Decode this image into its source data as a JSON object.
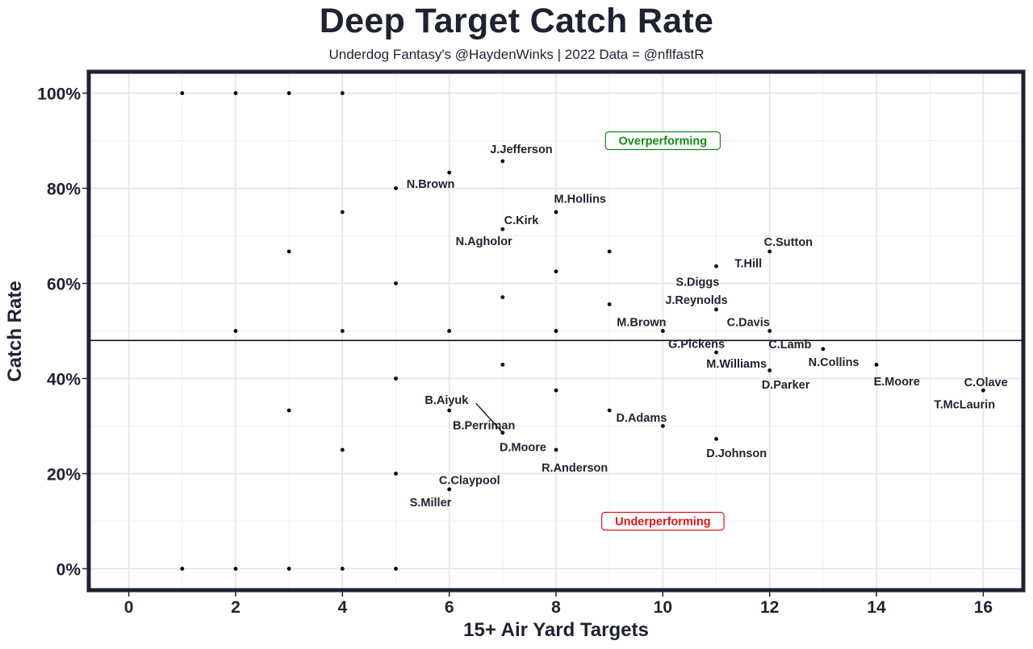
{
  "title": "Deep Target Catch Rate",
  "subtitle": "Underdog Fantasy's @HaydenWinks | 2022 Data = @nflfastR",
  "chart_data": {
    "type": "scatter",
    "xlabel": "15+ Air Yard Targets",
    "ylabel": "Catch Rate",
    "xlim": [
      -0.75,
      16.75
    ],
    "ylim": [
      -4.5,
      104.5
    ],
    "xticks": [
      0,
      2,
      4,
      6,
      8,
      10,
      12,
      14,
      16
    ],
    "yticks": [
      0,
      20,
      40,
      60,
      80,
      100
    ],
    "ytick_labels": [
      "0%",
      "20%",
      "40%",
      "60%",
      "80%",
      "100%"
    ],
    "reference_line_y": 48,
    "grid": true,
    "points": [
      {
        "x": 1,
        "y": 100
      },
      {
        "x": 2,
        "y": 100
      },
      {
        "x": 3,
        "y": 100
      },
      {
        "x": 4,
        "y": 100
      },
      {
        "x": 6,
        "y": 83.3
      },
      {
        "x": 7,
        "y": 85.7,
        "label": "J.Jefferson"
      },
      {
        "x": 5,
        "y": 80,
        "label": "N.Brown"
      },
      {
        "x": 4,
        "y": 75
      },
      {
        "x": 8,
        "y": 75,
        "label": "M.Hollins"
      },
      {
        "x": 7,
        "y": 71.4,
        "label": "C.Kirk"
      },
      {
        "x": 3,
        "y": 66.7
      },
      {
        "x": 9,
        "y": 66.7
      },
      {
        "x": 12,
        "y": 66.7,
        "label": "C.Sutton"
      },
      {
        "x": 11,
        "y": 63.6,
        "label": "T.Hill"
      },
      {
        "x": 8,
        "y": 62.5
      },
      {
        "x": 5,
        "y": 60
      },
      {
        "x": 7,
        "y": 57.1,
        "label": "N.Agholor"
      },
      {
        "x": 9,
        "y": 55.6
      },
      {
        "x": 11,
        "y": 54.5,
        "label": "S.Diggs"
      },
      {
        "x": 2,
        "y": 50
      },
      {
        "x": 4,
        "y": 50
      },
      {
        "x": 6,
        "y": 50
      },
      {
        "x": 8,
        "y": 50
      },
      {
        "x": 10,
        "y": 50,
        "label": "J.Reynolds"
      },
      {
        "x": 12,
        "y": 50,
        "label": "C.Davis"
      },
      {
        "x": 13,
        "y": 46.2,
        "label": "C.Lamb"
      },
      {
        "x": 11,
        "y": 45.5,
        "label": "G.Pickens"
      },
      {
        "x": 7,
        "y": 42.9
      },
      {
        "x": 14,
        "y": 42.9,
        "label": "N.Collins"
      },
      {
        "x": 12,
        "y": 41.7,
        "label": "M.Williams"
      },
      {
        "x": 5,
        "y": 40
      },
      {
        "x": 8,
        "y": 37.5
      },
      {
        "x": 16,
        "y": 37.5,
        "label": "C.Olave"
      },
      {
        "x": 3,
        "y": 33.3
      },
      {
        "x": 6,
        "y": 33.3,
        "label": "B.Aiyuk"
      },
      {
        "x": 9,
        "y": 33.3,
        "label": "D.Adams"
      },
      {
        "x": 10,
        "y": 30
      },
      {
        "x": 7,
        "y": 28.6,
        "label": "B.Perriman"
      },
      {
        "x": 11,
        "y": 27.3,
        "label": "D.Johnson"
      },
      {
        "x": 4,
        "y": 25
      },
      {
        "x": 8,
        "y": 25,
        "label": "R.Anderson"
      },
      {
        "x": 5,
        "y": 20
      },
      {
        "x": 6,
        "y": 16.7,
        "label": "C.Claypool"
      },
      {
        "x": 1,
        "y": 0
      },
      {
        "x": 2,
        "y": 0
      },
      {
        "x": 3,
        "y": 0
      },
      {
        "x": 4,
        "y": 0
      },
      {
        "x": 5,
        "y": 0
      }
    ],
    "labels": [
      {
        "text": "J.Jefferson",
        "x": 7.35,
        "y": 88.2
      },
      {
        "text": "N.Brown",
        "x": 5.65,
        "y": 80.9
      },
      {
        "text": "M.Hollins",
        "x": 8.45,
        "y": 77.8
      },
      {
        "text": "C.Kirk",
        "x": 7.35,
        "y": 73.3
      },
      {
        "text": "N.Agholor",
        "x": 6.65,
        "y": 68.9
      },
      {
        "text": "C.Sutton",
        "x": 12.35,
        "y": 68.7
      },
      {
        "text": "T.Hill",
        "x": 11.6,
        "y": 64.2
      },
      {
        "text": "S.Diggs",
        "x": 10.65,
        "y": 60.3
      },
      {
        "text": "J.Reynolds",
        "x": 10.63,
        "y": 56.5
      },
      {
        "text": "M.Brown",
        "x": 9.6,
        "y": 51.9
      },
      {
        "text": "C.Davis",
        "x": 11.6,
        "y": 51.9
      },
      {
        "text": "G.Pickens",
        "x": 10.63,
        "y": 47.3
      },
      {
        "text": "C.Lamb",
        "x": 12.38,
        "y": 47.2
      },
      {
        "text": "M.Williams",
        "x": 11.38,
        "y": 43.1
      },
      {
        "text": "N.Collins",
        "x": 13.2,
        "y": 43.5
      },
      {
        "text": "E.Moore",
        "x": 14.38,
        "y": 39.4
      },
      {
        "text": "D.Parker",
        "x": 12.3,
        "y": 38.7
      },
      {
        "text": "C.Olave",
        "x": 16.05,
        "y": 39.2
      },
      {
        "text": "T.McLaurin",
        "x": 15.65,
        "y": 34.6
      },
      {
        "text": "B.Aiyuk",
        "x": 5.95,
        "y": 35.5
      },
      {
        "text": "D.Adams",
        "x": 9.6,
        "y": 31.8
      },
      {
        "text": "B.Perriman",
        "x": 6.65,
        "y": 30.2
      },
      {
        "text": "D.Moore",
        "x": 7.38,
        "y": 25.6
      },
      {
        "text": "D.Johnson",
        "x": 11.38,
        "y": 24.3
      },
      {
        "text": "R.Anderson",
        "x": 8.35,
        "y": 21.3
      },
      {
        "text": "C.Claypool",
        "x": 6.38,
        "y": 18.6
      },
      {
        "text": "S.Miller",
        "x": 5.65,
        "y": 14.0
      }
    ],
    "connectors": [
      {
        "x1": 6.5,
        "y1": 34.8,
        "x2": 7,
        "y2": 28.6
      }
    ],
    "annotations": [
      {
        "text": "Overperforming",
        "x": 10,
        "y": 90,
        "color": "#138a13"
      },
      {
        "text": "Underperforming",
        "x": 10,
        "y": 10,
        "color": "#e3121b"
      }
    ]
  }
}
